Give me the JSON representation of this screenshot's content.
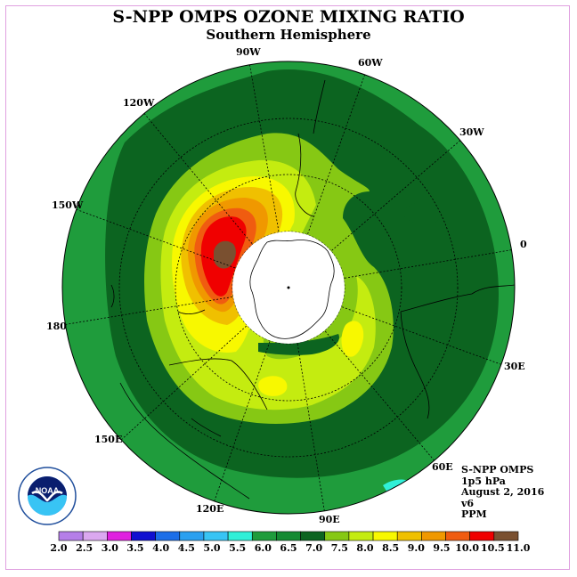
{
  "title": "S-NPP OMPS OZONE MIXING RATIO",
  "subtitle": "Southern Hemisphere",
  "longitude_labels": [
    "90W",
    "60W",
    "30W",
    "0",
    "30E",
    "60E",
    "90E",
    "120E",
    "150E",
    "180",
    "150W",
    "120W"
  ],
  "info": {
    "line1": "S-NPP OMPS",
    "line2": "1p5 hPa",
    "line3": "August 2, 2016",
    "line4": "v6",
    "line5": "PPM"
  },
  "logo_text": "NOAA",
  "colorbar": {
    "ticks": [
      "2.0",
      "2.5",
      "3.0",
      "3.5",
      "4.0",
      "4.5",
      "5.0",
      "5.5",
      "6.0",
      "6.5",
      "7.0",
      "7.5",
      "8.0",
      "8.5",
      "9.0",
      "9.5",
      "10.0",
      "10.5",
      "11.0"
    ],
    "colors": [
      "#b57ee8",
      "#dba8f0",
      "#e020e0",
      "#1010d0",
      "#1c6ee8",
      "#2aa0f0",
      "#38c4f4",
      "#30f0d8",
      "#1f9c3c",
      "#148a32",
      "#0c6420",
      "#86c814",
      "#c4ec10",
      "#f8f800",
      "#f0c000",
      "#f09800",
      "#f05c10",
      "#f00000",
      "#7a5030"
    ]
  },
  "colors": {
    "outer_green": "#1f9c3c",
    "dark_green": "#0c6420",
    "high_max": "#7a5030"
  }
}
